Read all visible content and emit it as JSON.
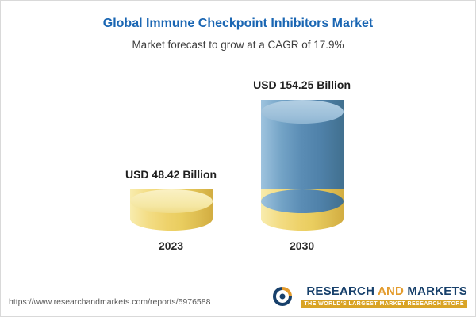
{
  "chart_data": {
    "type": "bar",
    "bar_style": "3d-cylinder-stacked",
    "title": "Global Immune Checkpoint Inhibitors Market",
    "subtitle": "Market forecast to grow at a CAGR of 17.9%",
    "cagr": "17.9%",
    "categories": [
      "2023",
      "2030"
    ],
    "values": [
      48.42,
      154.25
    ],
    "unit": "USD Billion",
    "value_labels": [
      "USD 48.42 Billion",
      "USD 154.25 Billion"
    ],
    "grid": false,
    "legend_position": "none",
    "colors": {
      "base_segment": "#EFD36C",
      "growth_segment": "#5589B5",
      "title_text": "#1A66B3"
    }
  },
  "footer": {
    "url": "https://www.researchandmarkets.com/reports/5976588",
    "logo": {
      "word_research": "RESEARCH",
      "word_and": "AND",
      "word_markets": "MARKETS",
      "tagline": "THE WORLD'S LARGEST MARKET RESEARCH STORE"
    }
  }
}
